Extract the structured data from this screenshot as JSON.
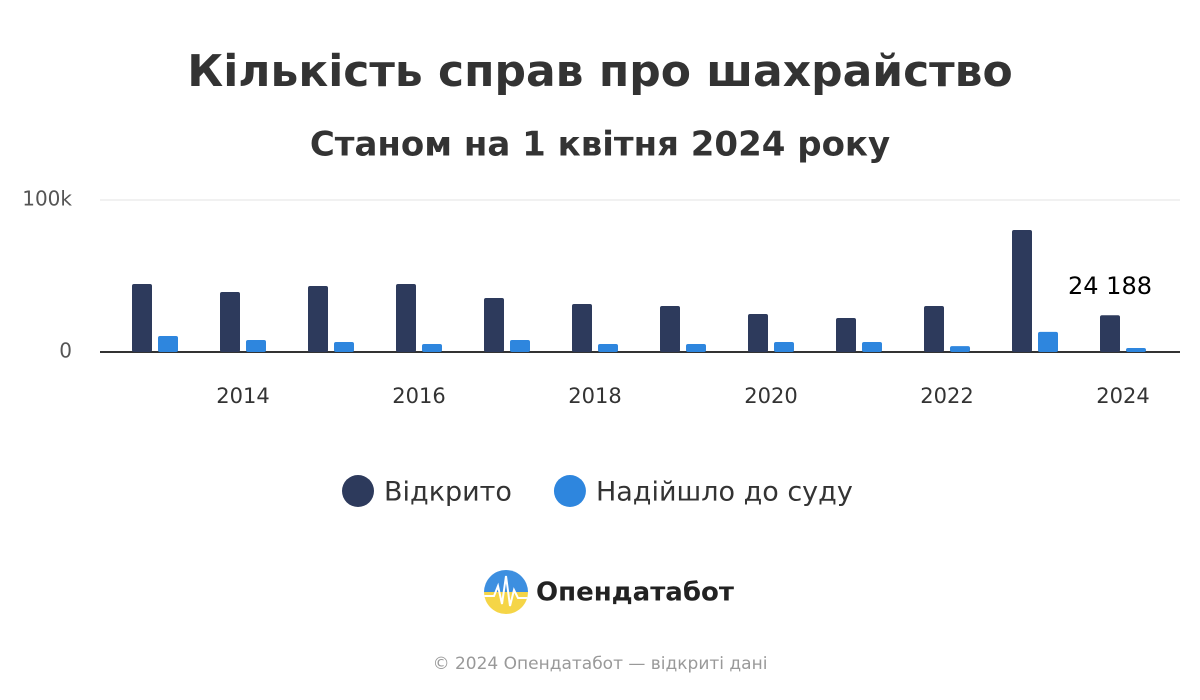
{
  "chart_data": {
    "type": "bar",
    "title": "Кількість справ про шахрайство",
    "subtitle": "Станом на 1 квітня 2024 року",
    "categories": [
      null,
      "2014",
      null,
      "2016",
      null,
      "2018",
      null,
      "2020",
      null,
      "2022",
      null,
      "2024"
    ],
    "series": [
      {
        "name": "Відкрито",
        "color": "#2d3a5c",
        "values": [
          44700,
          39500,
          43400,
          44700,
          35500,
          31600,
          30300,
          25000,
          22400,
          30300,
          80300,
          24188
        ],
        "value_labels": [
          null,
          null,
          null,
          null,
          null,
          null,
          null,
          null,
          null,
          null,
          null,
          "24 188"
        ]
      },
      {
        "name": "Надійшло до суду",
        "color": "#2e86de",
        "values": [
          10500,
          7900,
          6600,
          5300,
          7900,
          5300,
          5300,
          6600,
          6600,
          3900,
          13200,
          2600
        ]
      }
    ],
    "ylim": [
      0,
      100000
    ],
    "yticks": [
      0,
      {
        "value": 100000,
        "label": "100k"
      }
    ],
    "grid": true,
    "legend": "bottom"
  },
  "brand": "Опендатабот",
  "footer": "© 2024 Опендатабот — відкриті дані"
}
